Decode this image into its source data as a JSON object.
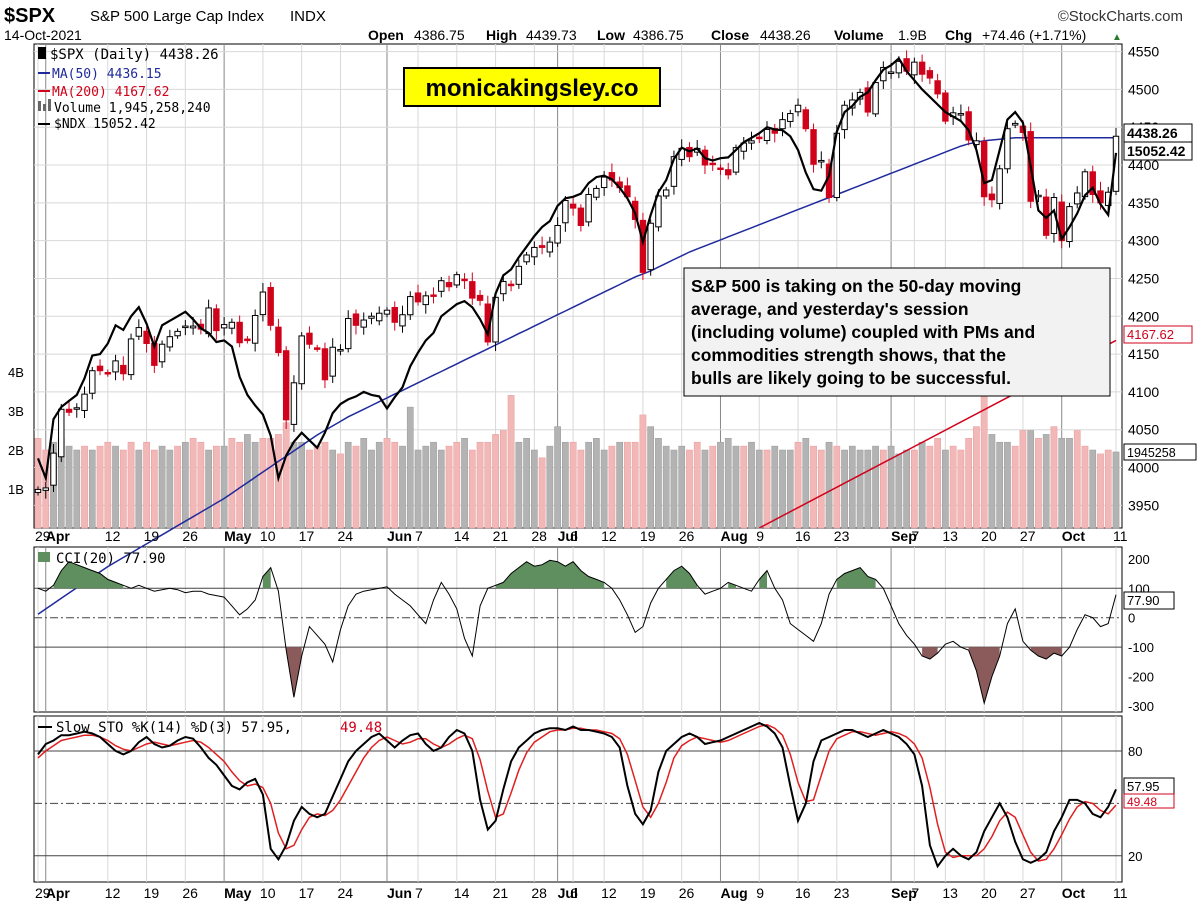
{
  "header": {
    "ticker": "$SPX",
    "name": "S&P 500 Large Cap Index",
    "exchange": "INDX",
    "date": "14-Oct-2021",
    "brand": "©StockCharts.com",
    "open_label": "Open",
    "open": "4386.75",
    "high_label": "High",
    "high": "4439.73",
    "low_label": "Low",
    "low": "4386.75",
    "close_label": "Close",
    "close": "4438.26",
    "volume_label": "Volume",
    "volume": "1.9B",
    "chg_label": "Chg",
    "chg": "+74.46 (+1.71%)",
    "chg_arrow": "▲"
  },
  "legend": {
    "spx": "$SPX (Daily) 4438.26",
    "ma50": "MA(50) 4436.15",
    "ma200": "MA(200) 4167.62",
    "volume": "Volume 1,945,258,240",
    "ndx": "$NDX 15052.42"
  },
  "watermark": "monicakingsley.co",
  "annotation": [
    "S&P 500 is taking on the 50-day moving",
    "average, and yesterday's session",
    "(including volume) coupled with PMs and",
    "commodities strength shows, that the",
    "bulls are likely going to be successful."
  ],
  "right_labels": {
    "close": "4438.26",
    "ndx": "15052.42",
    "ma200": "4167.62",
    "volume": "1945258",
    "cci": "77.90",
    "k": "57.95",
    "d": "49.48"
  },
  "colors": {
    "up": "#000000",
    "down": "#d0021b",
    "ma50": "#1f2a9c",
    "ma200": "#d0021b",
    "cci_pos": "#5f8f5f",
    "cci_neg": "#8b5a5a",
    "watermark_bg": "#ffff00",
    "vol_up": "#b3b3b3",
    "vol_down": "#f2b8b8"
  },
  "x_axis": {
    "labels": [
      {
        "t": "29",
        "i": 0,
        "b": false
      },
      {
        "t": "Apr",
        "i": 1,
        "b": true
      },
      {
        "t": "12",
        "i": 9,
        "b": false
      },
      {
        "t": "19",
        "i": 14,
        "b": false
      },
      {
        "t": "26",
        "i": 19,
        "b": false
      },
      {
        "t": "May",
        "i": 24,
        "b": true
      },
      {
        "t": "10",
        "i": 29,
        "b": false
      },
      {
        "t": "17",
        "i": 34,
        "b": false
      },
      {
        "t": "24",
        "i": 39,
        "b": false
      },
      {
        "t": "Jun",
        "i": 45,
        "b": true
      },
      {
        "t": "7",
        "i": 49,
        "b": false
      },
      {
        "t": "14",
        "i": 54,
        "b": false
      },
      {
        "t": "21",
        "i": 59,
        "b": false
      },
      {
        "t": "28",
        "i": 64,
        "b": false
      },
      {
        "t": "Jul",
        "i": 67,
        "b": true
      },
      {
        "t": "6",
        "i": 69,
        "b": false
      },
      {
        "t": "12",
        "i": 73,
        "b": false
      },
      {
        "t": "19",
        "i": 78,
        "b": false
      },
      {
        "t": "26",
        "i": 83,
        "b": false
      },
      {
        "t": "Aug",
        "i": 88,
        "b": true
      },
      {
        "t": "9",
        "i": 93,
        "b": false
      },
      {
        "t": "16",
        "i": 98,
        "b": false
      },
      {
        "t": "23",
        "i": 103,
        "b": false
      },
      {
        "t": "Sep",
        "i": 110,
        "b": true
      },
      {
        "t": "7",
        "i": 113,
        "b": false
      },
      {
        "t": "13",
        "i": 117,
        "b": false
      },
      {
        "t": "20",
        "i": 122,
        "b": false
      },
      {
        "t": "27",
        "i": 127,
        "b": false
      },
      {
        "t": "Oct",
        "i": 132,
        "b": true
      },
      {
        "t": "11",
        "i": 139,
        "b": false
      }
    ]
  },
  "chart_data": [
    {
      "type": "candlestick",
      "panel": "price",
      "ylim": [
        3920,
        4560
      ],
      "y_ticks": [
        3950,
        4000,
        4050,
        4100,
        4150,
        4200,
        4250,
        4300,
        4350,
        4400,
        4450,
        4500,
        4550
      ],
      "volume_ticks": [
        {
          "v": 1,
          "t": "1B"
        },
        {
          "v": 2,
          "t": "2B"
        },
        {
          "v": 3,
          "t": "3B"
        },
        {
          "v": 4,
          "t": "4B"
        }
      ],
      "volume_max": 5,
      "close": [
        3971,
        3973,
        4019,
        4077,
        4073,
        4079,
        4097,
        4128,
        4128,
        4124,
        4141,
        4124,
        4170,
        4185,
        4164,
        4135,
        4163,
        4173,
        4180,
        4187,
        4187,
        4183,
        4211,
        4181,
        4189,
        4192,
        4165,
        4168,
        4201,
        4232,
        4188,
        4152,
        4063,
        4112,
        4174,
        4163,
        4157,
        4116,
        4159,
        4156,
        4197,
        4188,
        4195,
        4200,
        4204,
        4208,
        4192,
        4202,
        4226,
        4219,
        4227,
        4227,
        4247,
        4239,
        4255,
        4247,
        4224,
        4221,
        4166,
        4225,
        4246,
        4241,
        4266,
        4281,
        4291,
        4291,
        4298,
        4320,
        4353,
        4343,
        4320,
        4361,
        4369,
        4384,
        4380,
        4370,
        4358,
        4328,
        4258,
        4323,
        4359,
        4367,
        4411,
        4422,
        4411,
        4422,
        4400,
        4402,
        4395,
        4387,
        4423,
        4429,
        4432,
        4436,
        4447,
        4442,
        4460,
        4468,
        4479,
        4448,
        4401,
        4406,
        4357,
        4442,
        4479,
        4486,
        4496,
        4470,
        4509,
        4529,
        4523,
        4537,
        4524,
        4536,
        4520,
        4515,
        4494,
        4458,
        4469,
        4468,
        4433,
        4432,
        4358,
        4354,
        4395,
        4448,
        4455,
        4443,
        4352,
        4360,
        4307,
        4357,
        4300,
        4345,
        4363,
        4391,
        4361,
        4350,
        4364,
        4438
      ],
      "ndx_y": [
        4012,
        3986,
        4064,
        4080,
        4088,
        4096,
        4118,
        4148,
        4150,
        4164,
        4188,
        4182,
        4200,
        4212,
        4190,
        4160,
        4188,
        4194,
        4200,
        4206,
        4196,
        4184,
        4178,
        4166,
        4168,
        4160,
        4120,
        4096,
        4082,
        4070,
        4042,
        3986,
        4016,
        4034,
        4046,
        4036,
        4026,
        4046,
        4072,
        4084,
        4090,
        4094,
        4100,
        4096,
        4094,
        4078,
        4093,
        4106,
        4134,
        4152,
        4168,
        4178,
        4200,
        4208,
        4216,
        4220,
        4212,
        4196,
        4176,
        4230,
        4254,
        4262,
        4278,
        4292,
        4306,
        4318,
        4326,
        4346,
        4356,
        4358,
        4362,
        4376,
        4384,
        4386,
        4381,
        4370,
        4356,
        4336,
        4298,
        4334,
        4364,
        4380,
        4408,
        4423,
        4418,
        4422,
        4409,
        4406,
        4409,
        4410,
        4420,
        4430,
        4436,
        4442,
        4450,
        4447,
        4446,
        4438,
        4420,
        4390,
        4368,
        4366,
        4386,
        4444,
        4470,
        4478,
        4490,
        4496,
        4512,
        4526,
        4532,
        4541,
        4524,
        4512,
        4500,
        4490,
        4480,
        4470,
        4464,
        4458,
        4446,
        4420,
        4376,
        4380,
        4420,
        4460,
        4470,
        4456,
        4398,
        4340,
        4330,
        4340,
        4302,
        4318,
        4336,
        4360,
        4370,
        4348,
        4334,
        4416
      ],
      "ma50": [
        3806,
        3813,
        3820,
        3827,
        3834,
        3841,
        3848,
        3855,
        3862,
        3869,
        3875,
        3881,
        3887,
        3893,
        3899,
        3905,
        3911,
        3917,
        3923,
        3929,
        3935,
        3941,
        3947,
        3953,
        3959,
        3966,
        3973,
        3980,
        3987,
        3994,
        4001,
        4008,
        4015,
        4022,
        4029,
        4036,
        4043,
        4049,
        4055,
        4061,
        4067,
        4072,
        4077,
        4082,
        4087,
        4092,
        4097,
        4102,
        4107,
        4112,
        4117,
        4122,
        4127,
        4132,
        4137,
        4142,
        4147,
        4152,
        4157,
        4162,
        4167,
        4172,
        4177,
        4182,
        4187,
        4192,
        4197,
        4202,
        4207,
        4212,
        4217,
        4222,
        4227,
        4232,
        4237,
        4242,
        4247,
        4252,
        4256,
        4260,
        4265,
        4270,
        4275,
        4280,
        4285,
        4289,
        4293,
        4297,
        4301,
        4305,
        4309,
        4313,
        4317,
        4321,
        4325,
        4329,
        4333,
        4337,
        4341,
        4345,
        4349,
        4353,
        4357,
        4361,
        4365,
        4369,
        4373,
        4377,
        4381,
        4385,
        4389,
        4393,
        4397,
        4401,
        4405,
        4409,
        4413,
        4417,
        4421,
        4425,
        4428,
        4430,
        4432,
        4433,
        4434,
        4435,
        4436,
        4436,
        4436,
        4436,
        4436,
        4436,
        4436,
        4436,
        4436,
        4436,
        4436,
        4436,
        4436,
        4436
      ],
      "ma200_x_start": 93,
      "ma200_start": 3920,
      "ma200_end": 4168,
      "volume": [
        2.3,
        2.0,
        2.2,
        2.3,
        2.1,
        2.0,
        2.1,
        2.0,
        2.1,
        2.2,
        2.1,
        2.0,
        2.2,
        2.0,
        2.2,
        2.0,
        2.1,
        2.0,
        2.1,
        2.2,
        2.3,
        2.2,
        2.0,
        2.1,
        2.1,
        2.3,
        2.2,
        2.4,
        2.2,
        2.3,
        2.3,
        2.4,
        2.7,
        2.2,
        2.2,
        2.0,
        2.1,
        2.2,
        2.0,
        1.9,
        2.2,
        2.1,
        2.3,
        2.0,
        2.2,
        2.3,
        2.2,
        2.1,
        3.1,
        2.0,
        2.1,
        2.2,
        2.0,
        2.1,
        2.2,
        2.3,
        2.0,
        2.2,
        2.2,
        2.4,
        2.5,
        3.4,
        2.2,
        2.3,
        2.0,
        1.8,
        2.1,
        2.6,
        2.2,
        2.2,
        2.0,
        2.2,
        2.3,
        2.0,
        2.1,
        2.2,
        2.2,
        2.2,
        2.9,
        2.6,
        2.3,
        2.1,
        2.0,
        2.1,
        2.0,
        2.2,
        2.0,
        2.1,
        2.2,
        2.3,
        2.1,
        2.1,
        2.2,
        2.0,
        2.0,
        2.1,
        2.0,
        2.0,
        2.2,
        2.3,
        2.1,
        2.0,
        2.2,
        2.1,
        2.0,
        2.1,
        2.0,
        2.0,
        2.1,
        2.0,
        2.1,
        1.9,
        2.0,
        2.0,
        2.2,
        2.1,
        2.3,
        2.0,
        2.1,
        2.0,
        2.3,
        2.6,
        3.5,
        2.4,
        2.2,
        2.2,
        2.1,
        2.5,
        2.5,
        2.3,
        2.4,
        2.6,
        2.3,
        2.3,
        2.5,
        2.1,
        2.0,
        1.9,
        2.0,
        1.95
      ],
      "volume_dir": [
        -1,
        -1,
        1,
        1,
        1,
        1,
        -1,
        1,
        -1,
        -1,
        1,
        -1,
        -1,
        1,
        -1,
        -1,
        1,
        1,
        -1,
        1,
        -1,
        -1,
        1,
        -1,
        1,
        -1,
        -1,
        1,
        1,
        -1,
        -1,
        -1,
        -1,
        1,
        1,
        -1,
        -1,
        -1,
        1,
        -1,
        1,
        -1,
        1,
        1,
        1,
        -1,
        -1,
        1,
        1,
        1,
        1,
        1,
        1,
        -1,
        -1,
        1,
        -1,
        -1,
        -1,
        -1,
        -1,
        -1,
        1,
        1,
        1,
        -1,
        1,
        1,
        1,
        -1,
        -1,
        1,
        1,
        1,
        -1,
        1,
        -1,
        -1,
        -1,
        1,
        1,
        1,
        1,
        1,
        -1,
        -1,
        1,
        -1,
        1,
        1,
        1,
        -1,
        1,
        1,
        -1,
        1,
        1,
        1,
        -1,
        1,
        -1,
        -1,
        1,
        -1,
        1,
        1,
        1,
        1,
        1,
        -1,
        1,
        1,
        1,
        -1,
        1,
        -1,
        -1,
        1,
        -1,
        -1,
        -1,
        -1,
        -1,
        1,
        1,
        1,
        -1,
        -1,
        1,
        -1,
        1,
        -1,
        1,
        1,
        -1,
        -1,
        1,
        -1,
        -1,
        1
      ]
    },
    {
      "type": "line",
      "panel": "cci",
      "title": "CCI(20) 77.90",
      "ylim": [
        -320,
        240
      ],
      "y_ticks": [
        {
          "v": 200,
          "t": "200"
        },
        {
          "v": 100,
          "t": "100"
        },
        {
          "v": 0,
          "t": "0"
        },
        {
          "v": -100,
          "t": "-100"
        },
        {
          "v": -200,
          "t": "-200"
        },
        {
          "v": -300,
          "t": "-300"
        }
      ],
      "values": [
        100,
        90,
        110,
        160,
        190,
        180,
        170,
        160,
        150,
        130,
        120,
        110,
        100,
        110,
        100,
        90,
        95,
        100,
        95,
        85,
        90,
        90,
        80,
        75,
        70,
        40,
        10,
        30,
        60,
        140,
        170,
        90,
        -110,
        -270,
        -130,
        -30,
        -60,
        -90,
        -150,
        -40,
        40,
        80,
        90,
        95,
        100,
        105,
        80,
        60,
        40,
        10,
        -20,
        60,
        120,
        80,
        30,
        -70,
        -130,
        40,
        100,
        110,
        120,
        150,
        170,
        190,
        175,
        180,
        195,
        190,
        175,
        190,
        160,
        140,
        130,
        120,
        100,
        60,
        10,
        -50,
        -30,
        50,
        100,
        130,
        160,
        175,
        150,
        110,
        80,
        90,
        100,
        120,
        110,
        100,
        90,
        130,
        160,
        100,
        60,
        -20,
        -40,
        -60,
        -80,
        -20,
        80,
        130,
        150,
        160,
        170,
        140,
        130,
        100,
        40,
        -20,
        -60,
        -90,
        -130,
        -140,
        -120,
        -90,
        -80,
        -100,
        -110,
        -180,
        -290,
        -200,
        -130,
        -20,
        30,
        -80,
        -110,
        -130,
        -140,
        -120,
        -130,
        -100,
        -40,
        10,
        0,
        -30,
        -20,
        78
      ]
    },
    {
      "type": "line",
      "panel": "stochastic",
      "title": "Slow STO %K(14) %D(3) 57.95,",
      "title_d": "49.48",
      "ylim": [
        5,
        100
      ],
      "y_ticks": [
        {
          "v": 80,
          "t": "80"
        },
        {
          "v": 50,
          "t": "50"
        },
        {
          "v": 20,
          "t": "20"
        }
      ],
      "k_values": [
        78,
        84,
        86,
        89,
        89,
        90,
        91,
        90,
        88,
        84,
        80,
        78,
        80,
        85,
        88,
        84,
        82,
        83,
        86,
        88,
        87,
        82,
        76,
        72,
        66,
        60,
        58,
        62,
        64,
        55,
        24,
        18,
        26,
        40,
        48,
        44,
        42,
        44,
        54,
        64,
        74,
        80,
        84,
        88,
        90,
        86,
        82,
        86,
        89,
        90,
        84,
        80,
        82,
        88,
        92,
        90,
        80,
        52,
        35,
        40,
        58,
        74,
        82,
        86,
        90,
        92,
        93,
        93,
        92,
        94,
        92,
        92,
        91,
        90,
        88,
        82,
        60,
        44,
        38,
        46,
        68,
        80,
        84,
        88,
        90,
        88,
        84,
        85,
        86,
        88,
        90,
        92,
        94,
        96,
        94,
        90,
        82,
        60,
        40,
        50,
        74,
        86,
        88,
        90,
        92,
        92,
        90,
        88,
        90,
        92,
        90,
        88,
        84,
        78,
        60,
        26,
        14,
        20,
        24,
        20,
        18,
        22,
        34,
        42,
        50,
        42,
        28,
        18,
        16,
        18,
        22,
        34,
        42,
        52,
        52,
        50,
        44,
        42,
        48,
        58
      ],
      "d_values": [
        76,
        80,
        83,
        86,
        87,
        88,
        89,
        89,
        88,
        86,
        83,
        81,
        80,
        82,
        84,
        85,
        84,
        83,
        84,
        85,
        86,
        85,
        82,
        78,
        74,
        68,
        63,
        60,
        61,
        59,
        50,
        33,
        24,
        26,
        35,
        42,
        44,
        43,
        46,
        52,
        60,
        68,
        76,
        82,
        86,
        88,
        86,
        84,
        85,
        87,
        87,
        84,
        82,
        84,
        87,
        89,
        87,
        75,
        57,
        42,
        44,
        56,
        69,
        79,
        85,
        88,
        91,
        92,
        92,
        93,
        93,
        92,
        92,
        91,
        90,
        87,
        78,
        63,
        48,
        42,
        50,
        62,
        76,
        83,
        86,
        88,
        87,
        86,
        85,
        86,
        88,
        90,
        92,
        94,
        95,
        93,
        89,
        78,
        62,
        51,
        52,
        66,
        80,
        87,
        89,
        91,
        91,
        90,
        89,
        90,
        91,
        90,
        88,
        84,
        76,
        59,
        38,
        22,
        19,
        20,
        20,
        20,
        24,
        31,
        40,
        45,
        42,
        32,
        22,
        17,
        18,
        24,
        32,
        41,
        48,
        51,
        50,
        46,
        44,
        49
      ]
    }
  ]
}
